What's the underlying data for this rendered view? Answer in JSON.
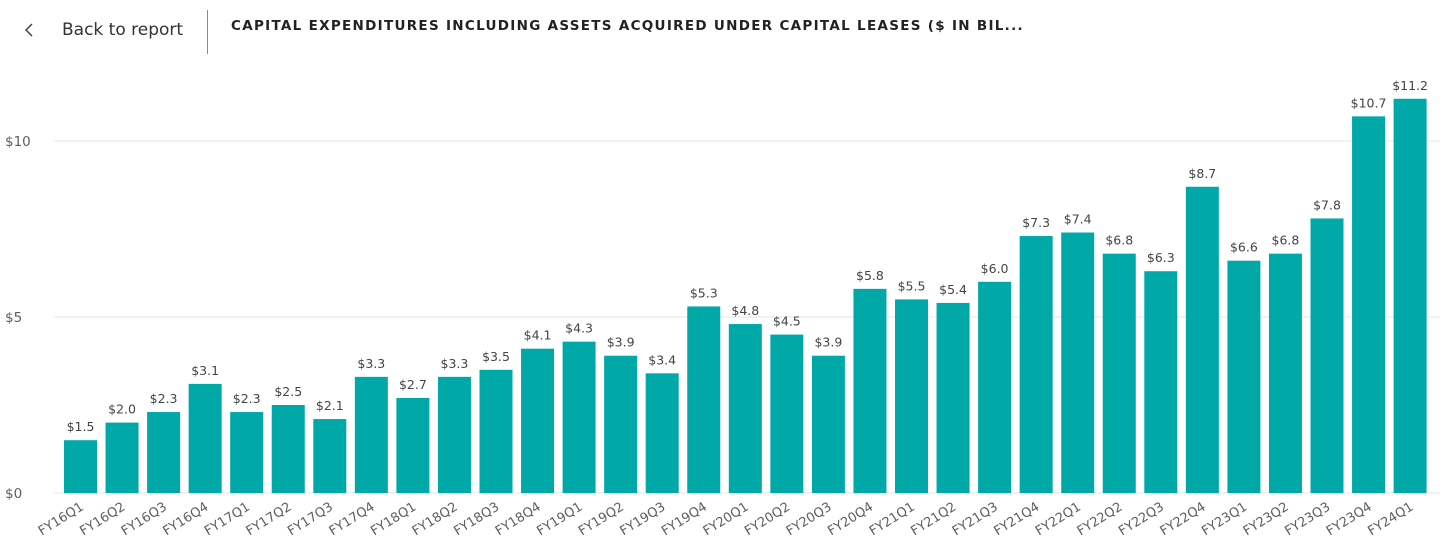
{
  "header": {
    "back_label": "Back to report",
    "back_icon": "chevron-left-icon",
    "title": "CAPITAL EXPENDITURES INCLUDING ASSETS ACQUIRED UNDER CAPITAL LEASES ($ IN BIL..."
  },
  "colors": {
    "bar": "#01a8a8",
    "gridline": "#e4e4e4",
    "axis_text": "#605e5c",
    "label_text": "#444444"
  },
  "chart_data": {
    "type": "bar",
    "title": "CAPITAL EXPENDITURES INCLUDING ASSETS ACQUIRED UNDER CAPITAL LEASES ($ IN BIL...",
    "categories": [
      "FY16Q1",
      "FY16Q2",
      "FY16Q3",
      "FY16Q4",
      "FY17Q1",
      "FY17Q2",
      "FY17Q3",
      "FY17Q4",
      "FY18Q1",
      "FY18Q2",
      "FY18Q3",
      "FY18Q4",
      "FY19Q1",
      "FY19Q2",
      "FY19Q3",
      "FY19Q4",
      "FY20Q1",
      "FY20Q2",
      "FY20Q3",
      "FY20Q4",
      "FY21Q1",
      "FY21Q2",
      "FY21Q3",
      "FY21Q4",
      "FY22Q1",
      "FY22Q2",
      "FY22Q3",
      "FY22Q4",
      "FY23Q1",
      "FY23Q2",
      "FY23Q3",
      "FY23Q4",
      "FY24Q1"
    ],
    "values": [
      1.5,
      2.0,
      2.3,
      3.1,
      2.3,
      2.5,
      2.1,
      3.3,
      2.7,
      3.3,
      3.5,
      4.1,
      4.3,
      3.9,
      3.4,
      5.3,
      4.8,
      4.5,
      3.9,
      5.8,
      5.5,
      5.4,
      6.0,
      7.3,
      7.4,
      6.8,
      6.3,
      8.7,
      6.6,
      6.8,
      7.8,
      10.7,
      11.2
    ],
    "data_labels": [
      "$1.5",
      "$2.0",
      "$2.3",
      "$3.1",
      "$2.3",
      "$2.5",
      "$2.1",
      "$3.3",
      "$2.7",
      "$3.3",
      "$3.5",
      "$4.1",
      "$4.3",
      "$3.9",
      "$3.4",
      "$5.3",
      "$4.8",
      "$4.5",
      "$3.9",
      "$5.8",
      "$5.5",
      "$5.4",
      "$6.0",
      "$7.3",
      "$7.4",
      "$6.8",
      "$6.3",
      "$8.7",
      "$6.6",
      "$6.8",
      "$7.8",
      "$10.7",
      "$11.2"
    ],
    "yticks": [
      0,
      5,
      10
    ],
    "ytick_labels": [
      "$0",
      "$5",
      "$10"
    ],
    "ylim": [
      0,
      12.3
    ],
    "xlabel": "",
    "ylabel": "",
    "grid": true,
    "xtick_rotation": "rotated"
  }
}
